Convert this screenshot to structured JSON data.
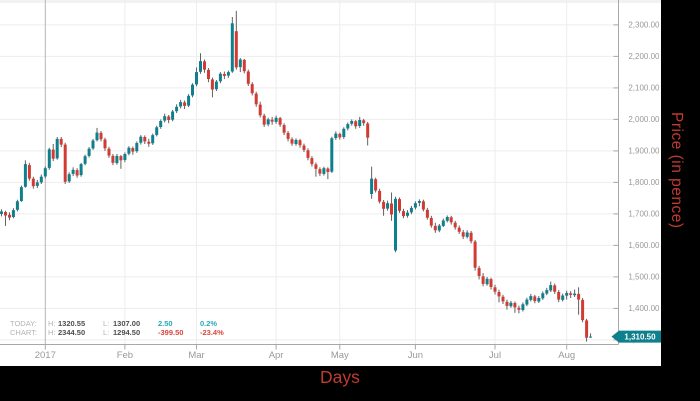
{
  "chart_data": {
    "type": "candlestick",
    "title": "",
    "xlabel": "Days",
    "ylabel": "Price (in pence)",
    "legend_position": "none",
    "grid": true,
    "x_axis": {
      "ticks": [
        {
          "index": 11,
          "label": "2017",
          "year_boundary": true
        },
        {
          "index": 31,
          "label": "Feb",
          "year_boundary": false
        },
        {
          "index": 49,
          "label": "Mar",
          "year_boundary": false
        },
        {
          "index": 69,
          "label": "Apr",
          "year_boundary": false
        },
        {
          "index": 85,
          "label": "May",
          "year_boundary": false
        },
        {
          "index": 104,
          "label": "Jun",
          "year_boundary": false
        },
        {
          "index": 124,
          "label": "Jul",
          "year_boundary": false
        },
        {
          "index": 142,
          "label": "Aug",
          "year_boundary": false
        }
      ]
    },
    "y_axis": {
      "range_top": 2380,
      "range_bottom": 1280,
      "ticks": [
        {
          "price": 2300,
          "label": "2,300.00"
        },
        {
          "price": 2200,
          "label": "2,200.00"
        },
        {
          "price": 2100,
          "label": "2,100.00"
        },
        {
          "price": 2000,
          "label": "2,000.00"
        },
        {
          "price": 1900,
          "label": "1,900.00"
        },
        {
          "price": 1800,
          "label": "1,800.00"
        },
        {
          "price": 1700,
          "label": "1,700.00"
        },
        {
          "price": 1600,
          "label": "1,600.00"
        },
        {
          "price": 1500,
          "label": "1,500.00"
        },
        {
          "price": 1400,
          "label": "1,400.00"
        },
        {
          "price": 1300,
          "label": "1,300.00"
        }
      ]
    },
    "last_price": {
      "value": 1310.5,
      "label": "1,310.50"
    },
    "style": {
      "up_color": "#0e7f8d",
      "down_color": "#d23b33",
      "wick_color": "#606060",
      "grid_color": "#ededed",
      "year_grid_color": "#b5b5b5",
      "axis_color": "#a8a8a8",
      "axis_text_color": "#999999",
      "tag_bg": "#0e7f8d",
      "tag_text": "#ffffff",
      "band_bg": "#000000",
      "label_red": "#c13a2e"
    },
    "candles": [
      [
        1700,
        1715,
        1692,
        1708
      ],
      [
        1706,
        1710,
        1662,
        1695
      ],
      [
        1697,
        1705,
        1680,
        1688
      ],
      [
        1690,
        1718,
        1686,
        1712
      ],
      [
        1713,
        1745,
        1708,
        1740
      ],
      [
        1741,
        1790,
        1738,
        1785
      ],
      [
        1786,
        1870,
        1783,
        1858
      ],
      [
        1855,
        1862,
        1805,
        1812
      ],
      [
        1812,
        1818,
        1780,
        1788
      ],
      [
        1789,
        1808,
        1782,
        1800
      ],
      [
        1800,
        1825,
        1795,
        1818
      ],
      [
        1819,
        1850,
        1813,
        1845
      ],
      [
        1846,
        1910,
        1840,
        1905
      ],
      [
        1904,
        1922,
        1868,
        1875
      ],
      [
        1876,
        1944,
        1872,
        1938
      ],
      [
        1938,
        1944,
        1912,
        1920
      ],
      [
        1920,
        1926,
        1795,
        1802
      ],
      [
        1803,
        1832,
        1798,
        1826
      ],
      [
        1827,
        1848,
        1820,
        1840
      ],
      [
        1839,
        1845,
        1815,
        1822
      ],
      [
        1823,
        1862,
        1818,
        1858
      ],
      [
        1859,
        1888,
        1854,
        1883
      ],
      [
        1884,
        1912,
        1879,
        1907
      ],
      [
        1908,
        1938,
        1903,
        1933
      ],
      [
        1934,
        1973,
        1930,
        1958
      ],
      [
        1957,
        1963,
        1930,
        1937
      ],
      [
        1936,
        1942,
        1900,
        1908
      ],
      [
        1907,
        1913,
        1878,
        1885
      ],
      [
        1884,
        1890,
        1855,
        1862
      ],
      [
        1861,
        1890,
        1856,
        1884
      ],
      [
        1883,
        1887,
        1843,
        1870
      ],
      [
        1871,
        1895,
        1864,
        1890
      ],
      [
        1891,
        1915,
        1886,
        1910
      ],
      [
        1909,
        1914,
        1888,
        1898
      ],
      [
        1899,
        1930,
        1894,
        1925
      ],
      [
        1926,
        1950,
        1920,
        1945
      ],
      [
        1944,
        1949,
        1922,
        1930
      ],
      [
        1929,
        1938,
        1913,
        1923
      ],
      [
        1924,
        1955,
        1919,
        1950
      ],
      [
        1951,
        1980,
        1946,
        1975
      ],
      [
        1976,
        2000,
        1970,
        1995
      ],
      [
        1996,
        2018,
        1990,
        2010
      ],
      [
        2009,
        2014,
        1988,
        1998
      ],
      [
        1999,
        2030,
        1994,
        2025
      ],
      [
        2026,
        2048,
        2020,
        2040
      ],
      [
        2041,
        2062,
        2035,
        2055
      ],
      [
        2054,
        2060,
        2033,
        2043
      ],
      [
        2044,
        2080,
        2039,
        2075
      ],
      [
        2076,
        2115,
        2070,
        2110
      ],
      [
        2111,
        2165,
        2105,
        2150
      ],
      [
        2151,
        2210,
        2145,
        2185
      ],
      [
        2184,
        2190,
        2148,
        2158
      ],
      [
        2157,
        2163,
        2118,
        2128
      ],
      [
        2127,
        2133,
        2070,
        2095
      ],
      [
        2096,
        2125,
        2090,
        2120
      ],
      [
        2121,
        2150,
        2115,
        2145
      ],
      [
        2144,
        2152,
        2128,
        2138
      ],
      [
        2139,
        2155,
        2132,
        2150
      ],
      [
        2152,
        2325,
        2148,
        2305
      ],
      [
        2280,
        2344.5,
        2158,
        2165
      ],
      [
        2166,
        2195,
        2150,
        2190
      ],
      [
        2189,
        2192,
        2146,
        2153
      ],
      [
        2152,
        2158,
        2106,
        2113
      ],
      [
        2112,
        2118,
        2076,
        2083
      ],
      [
        2082,
        2088,
        2040,
        2048
      ],
      [
        2047,
        2056,
        2006,
        2013
      ],
      [
        2012,
        2018,
        1976,
        1983
      ],
      [
        1984,
        2005,
        1978,
        2000
      ],
      [
        1999,
        2008,
        1983,
        1993
      ],
      [
        1992,
        2012,
        1986,
        2005
      ],
      [
        2004,
        2008,
        1976,
        1983
      ],
      [
        1982,
        1988,
        1950,
        1958
      ],
      [
        1957,
        1963,
        1930,
        1938
      ],
      [
        1937,
        1943,
        1916,
        1923
      ],
      [
        1922,
        1940,
        1916,
        1935
      ],
      [
        1934,
        1938,
        1910,
        1918
      ],
      [
        1917,
        1923,
        1896,
        1903
      ],
      [
        1902,
        1908,
        1870,
        1878
      ],
      [
        1877,
        1883,
        1850,
        1858
      ],
      [
        1857,
        1863,
        1818,
        1843
      ],
      [
        1842,
        1848,
        1820,
        1828
      ],
      [
        1827,
        1850,
        1822,
        1845
      ],
      [
        1844,
        1848,
        1810,
        1833
      ],
      [
        1834,
        1945,
        1830,
        1940
      ],
      [
        1941,
        1962,
        1935,
        1955
      ],
      [
        1954,
        1958,
        1936,
        1943
      ],
      [
        1944,
        1975,
        1938,
        1970
      ],
      [
        1971,
        1990,
        1965,
        1985
      ],
      [
        1986,
        2000,
        1980,
        1995
      ],
      [
        1994,
        1998,
        1970,
        1978
      ],
      [
        1979,
        2008,
        1973,
        1998
      ],
      [
        1997,
        2002,
        1980,
        1988
      ],
      [
        1987,
        1992,
        1917,
        1942
      ],
      [
        1763,
        1850,
        1748,
        1812
      ],
      [
        1810,
        1815,
        1768,
        1774
      ],
      [
        1773,
        1780,
        1733,
        1739
      ],
      [
        1738,
        1744,
        1694,
        1716
      ],
      [
        1717,
        1742,
        1710,
        1734
      ],
      [
        1733,
        1768,
        1678,
        1698
      ],
      [
        1584,
        1755,
        1578,
        1748
      ],
      [
        1747,
        1752,
        1703,
        1710
      ],
      [
        1709,
        1716,
        1686,
        1693
      ],
      [
        1694,
        1712,
        1688,
        1704
      ],
      [
        1705,
        1725,
        1699,
        1719
      ],
      [
        1720,
        1740,
        1714,
        1734
      ],
      [
        1735,
        1746,
        1724,
        1741
      ],
      [
        1740,
        1745,
        1708,
        1714
      ],
      [
        1713,
        1719,
        1682,
        1688
      ],
      [
        1687,
        1694,
        1656,
        1663
      ],
      [
        1662,
        1672,
        1640,
        1648
      ],
      [
        1647,
        1668,
        1642,
        1663
      ],
      [
        1662,
        1685,
        1658,
        1679
      ],
      [
        1678,
        1695,
        1673,
        1690
      ],
      [
        1689,
        1694,
        1666,
        1673
      ],
      [
        1672,
        1678,
        1650,
        1657
      ],
      [
        1656,
        1663,
        1636,
        1643
      ],
      [
        1642,
        1649,
        1620,
        1628
      ],
      [
        1627,
        1648,
        1622,
        1641
      ],
      [
        1640,
        1646,
        1606,
        1613
      ],
      [
        1612,
        1617,
        1520,
        1529
      ],
      [
        1528,
        1535,
        1492,
        1503
      ],
      [
        1502,
        1512,
        1470,
        1478
      ],
      [
        1477,
        1500,
        1472,
        1494
      ],
      [
        1493,
        1497,
        1460,
        1468
      ],
      [
        1467,
        1475,
        1444,
        1453
      ],
      [
        1452,
        1459,
        1419,
        1438
      ],
      [
        1437,
        1443,
        1414,
        1422
      ],
      [
        1421,
        1428,
        1396,
        1408
      ],
      [
        1407,
        1424,
        1402,
        1418
      ],
      [
        1417,
        1422,
        1386,
        1403
      ],
      [
        1402,
        1409,
        1384,
        1396
      ],
      [
        1395,
        1419,
        1390,
        1413
      ],
      [
        1412,
        1434,
        1407,
        1428
      ],
      [
        1427,
        1446,
        1422,
        1439
      ],
      [
        1438,
        1443,
        1416,
        1423
      ],
      [
        1422,
        1439,
        1417,
        1433
      ],
      [
        1432,
        1454,
        1427,
        1448
      ],
      [
        1447,
        1465,
        1442,
        1458
      ],
      [
        1457,
        1485,
        1452,
        1474
      ],
      [
        1473,
        1479,
        1446,
        1453
      ],
      [
        1452,
        1458,
        1420,
        1428
      ],
      [
        1427,
        1447,
        1422,
        1441
      ],
      [
        1440,
        1456,
        1428,
        1449
      ],
      [
        1448,
        1455,
        1433,
        1443
      ],
      [
        1442,
        1460,
        1436,
        1447
      ],
      [
        1446,
        1467,
        1380,
        1428
      ],
      [
        1427,
        1433,
        1356,
        1363
      ],
      [
        1362,
        1367,
        1294.5,
        1307
      ],
      [
        1308,
        1320.55,
        1307,
        1310.5
      ]
    ]
  },
  "legend": {
    "rows": [
      {
        "name": "TODAY:",
        "h_label": "H:",
        "high": "1320.55",
        "l_label": "L:",
        "low": "1307.00",
        "change": "2.50",
        "change_pct": "0.2%",
        "direction": "up"
      },
      {
        "name": "CHART:",
        "h_label": "H:",
        "high": "2344.50",
        "l_label": "L:",
        "low": "1294.50",
        "change": "-399.50",
        "change_pct": "-23.4%",
        "direction": "down"
      }
    ]
  }
}
